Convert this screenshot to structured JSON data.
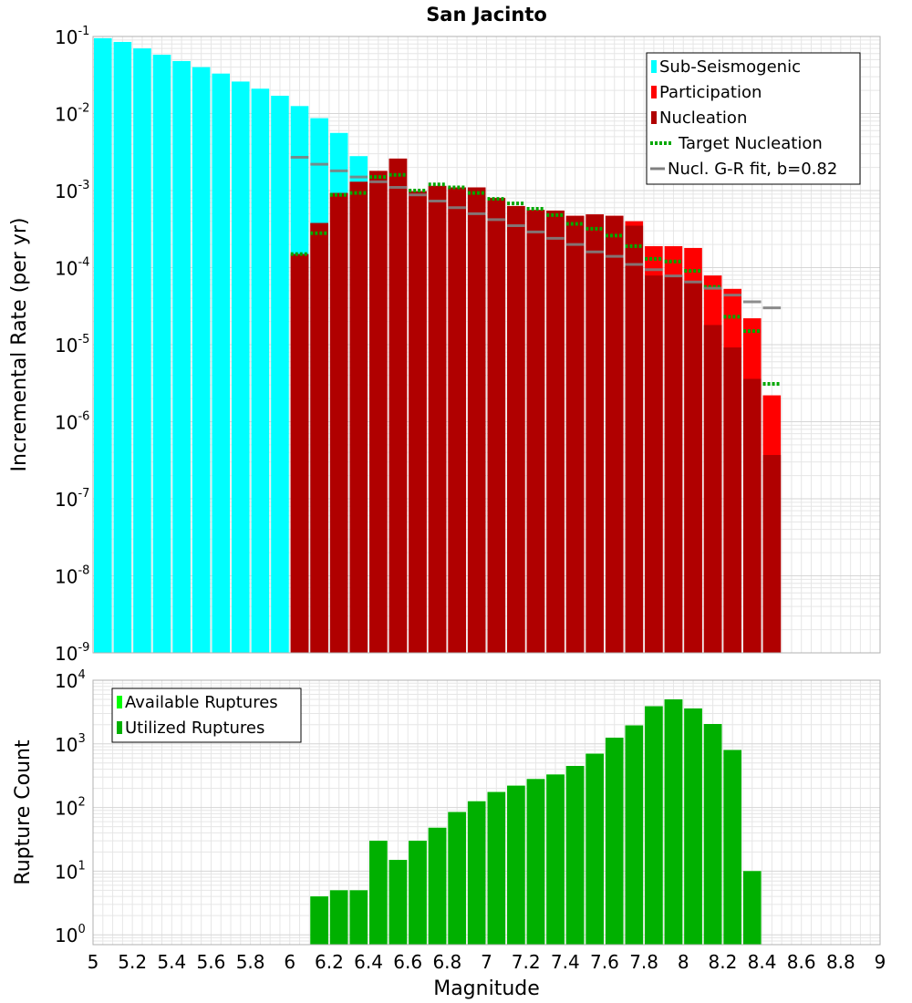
{
  "colors": {
    "sub_seismogenic": "#00ffff",
    "participation": "#ff0000",
    "nucleation": "#b00000",
    "target_nucleation": "#00a800",
    "gr_fit": "#808080",
    "gr_fit_on_bar": "#202020",
    "available": "#00ff00",
    "utilized": "#00b000",
    "grid": "#e6e6e6",
    "frame": "#b0b0b0"
  },
  "chart_data": [
    {
      "type": "bar",
      "title": "San Jacinto",
      "xlabel": "Magnitude",
      "ylabel": "Incremental Rate (per yr)",
      "yscale": "log",
      "xlim": [
        5,
        9
      ],
      "ylim": [
        1e-09,
        0.1
      ],
      "grid": true,
      "legend_position": "top-right",
      "y_ticks": [
        {
          "base": "10",
          "exp": "-9"
        },
        {
          "base": "10",
          "exp": "-8"
        },
        {
          "base": "10",
          "exp": "-7"
        },
        {
          "base": "10",
          "exp": "-6"
        },
        {
          "base": "10",
          "exp": "-5"
        },
        {
          "base": "10",
          "exp": "-4"
        },
        {
          "base": "10",
          "exp": "-3"
        },
        {
          "base": "10",
          "exp": "-2"
        },
        {
          "base": "10",
          "exp": "-1"
        }
      ],
      "series": [
        {
          "name": "Sub-Seismogenic",
          "style": "bar",
          "points": [
            [
              5.05,
              0.095
            ],
            [
              5.15,
              0.085
            ],
            [
              5.25,
              0.07
            ],
            [
              5.35,
              0.058
            ],
            [
              5.45,
              0.048
            ],
            [
              5.55,
              0.04
            ],
            [
              5.65,
              0.033
            ],
            [
              5.75,
              0.026
            ],
            [
              5.85,
              0.021
            ],
            [
              5.95,
              0.017
            ],
            [
              6.05,
              0.0125
            ],
            [
              6.15,
              0.0087
            ],
            [
              6.25,
              0.0056
            ],
            [
              6.35,
              0.0028
            ]
          ]
        },
        {
          "name": "Participation",
          "style": "bar",
          "points": [
            [
              6.05,
              0.00015
            ],
            [
              6.15,
              0.00038
            ],
            [
              6.25,
              0.00093
            ],
            [
              6.35,
              0.0013
            ],
            [
              6.45,
              0.0018
            ],
            [
              6.55,
              0.0026
            ],
            [
              6.65,
              0.00098
            ],
            [
              6.75,
              0.00115
            ],
            [
              6.85,
              0.0011
            ],
            [
              6.95,
              0.0011
            ],
            [
              7.05,
              0.0008
            ],
            [
              7.15,
              0.00063
            ],
            [
              7.25,
              0.00056
            ],
            [
              7.35,
              0.00055
            ],
            [
              7.45,
              0.00047
            ],
            [
              7.55,
              0.00049
            ],
            [
              7.65,
              0.00047
            ],
            [
              7.75,
              0.0004
            ],
            [
              7.85,
              0.00019
            ],
            [
              7.95,
              0.00019
            ],
            [
              8.05,
              0.00018
            ],
            [
              8.15,
              7.9e-05
            ],
            [
              8.25,
              5.3e-05
            ],
            [
              8.35,
              2.2e-05
            ],
            [
              8.45,
              2.2e-06
            ]
          ]
        },
        {
          "name": "Nucleation",
          "style": "bar",
          "points": [
            [
              6.05,
              0.00015
            ],
            [
              6.15,
              0.00038
            ],
            [
              6.25,
              0.00093
            ],
            [
              6.35,
              0.0013
            ],
            [
              6.45,
              0.0018
            ],
            [
              6.55,
              0.0026
            ],
            [
              6.65,
              0.00098
            ],
            [
              6.75,
              0.00115
            ],
            [
              6.85,
              0.0011
            ],
            [
              6.95,
              0.0011
            ],
            [
              7.05,
              0.0008
            ],
            [
              7.15,
              0.00063
            ],
            [
              7.25,
              0.00056
            ],
            [
              7.35,
              0.00055
            ],
            [
              7.45,
              0.00047
            ],
            [
              7.55,
              0.00049
            ],
            [
              7.65,
              0.00047
            ],
            [
              7.75,
              0.00035
            ],
            [
              7.85,
              7.9e-05
            ],
            [
              7.95,
              7.9e-05
            ],
            [
              8.05,
              6.6e-05
            ],
            [
              8.15,
              1.8e-05
            ],
            [
              8.25,
              9.2e-06
            ],
            [
              8.35,
              3.6e-06
            ],
            [
              8.45,
              3.7e-07
            ]
          ]
        },
        {
          "name": "Target Nucleation",
          "style": "dotted-segment",
          "points": [
            [
              6.05,
              0.00015
            ],
            [
              6.15,
              0.00028
            ],
            [
              6.25,
              0.00088
            ],
            [
              6.35,
              0.00093
            ],
            [
              6.45,
              0.0015
            ],
            [
              6.55,
              0.0016
            ],
            [
              6.65,
              0.001
            ],
            [
              6.75,
              0.0012
            ],
            [
              6.85,
              0.0011
            ],
            [
              6.95,
              0.00093
            ],
            [
              7.05,
              0.00078
            ],
            [
              7.15,
              0.00068
            ],
            [
              7.25,
              0.00058
            ],
            [
              7.35,
              0.00048
            ],
            [
              7.45,
              0.00037
            ],
            [
              7.55,
              0.00032
            ],
            [
              7.65,
              0.00026
            ],
            [
              7.75,
              0.00019
            ],
            [
              7.85,
              0.00013
            ],
            [
              7.95,
              0.00012
            ],
            [
              8.05,
              9.1e-05
            ],
            [
              8.15,
              5.6e-05
            ],
            [
              8.25,
              2.3e-05
            ],
            [
              8.35,
              1.5e-05
            ],
            [
              8.45,
              3.1e-06
            ]
          ]
        },
        {
          "name": "Nucl. G-R fit, b=0.82",
          "style": "segment",
          "points": [
            [
              6.05,
              0.0027
            ],
            [
              6.15,
              0.0022
            ],
            [
              6.25,
              0.0018
            ],
            [
              6.35,
              0.0015
            ],
            [
              6.45,
              0.0013
            ],
            [
              6.55,
              0.0011
            ],
            [
              6.65,
              0.00088
            ],
            [
              6.75,
              0.00073
            ],
            [
              6.85,
              0.0006
            ],
            [
              6.95,
              0.0005
            ],
            [
              7.05,
              0.00042
            ],
            [
              7.15,
              0.00035
            ],
            [
              7.25,
              0.00029
            ],
            [
              7.35,
              0.00024
            ],
            [
              7.45,
              0.0002
            ],
            [
              7.55,
              0.00016
            ],
            [
              7.65,
              0.00014
            ],
            [
              7.75,
              0.00011
            ],
            [
              7.85,
              9.4e-05
            ],
            [
              7.95,
              7.8e-05
            ],
            [
              8.05,
              6.5e-05
            ],
            [
              8.15,
              5.4e-05
            ],
            [
              8.25,
              4.4e-05
            ],
            [
              8.35,
              3.6e-05
            ],
            [
              8.45,
              3e-05
            ]
          ]
        }
      ]
    },
    {
      "type": "bar",
      "title": "",
      "xlabel": "Magnitude",
      "ylabel": "Rupture Count",
      "yscale": "log",
      "xlim": [
        5,
        9
      ],
      "ylim": [
        0.7,
        10000
      ],
      "grid": true,
      "legend_position": "top-left",
      "y_ticks": [
        {
          "base": "10",
          "exp": "0"
        },
        {
          "base": "10",
          "exp": "1"
        },
        {
          "base": "10",
          "exp": "2"
        },
        {
          "base": "10",
          "exp": "3"
        },
        {
          "base": "10",
          "exp": "4"
        }
      ],
      "x_ticks": [
        "5",
        "5.2",
        "5.4",
        "5.6",
        "5.8",
        "6",
        "6.2",
        "6.4",
        "6.6",
        "6.8",
        "7",
        "7.2",
        "7.4",
        "7.6",
        "7.8",
        "8",
        "8.2",
        "8.4",
        "8.6",
        "8.8",
        "9"
      ],
      "series": [
        {
          "name": "Available Ruptures",
          "style": "bar",
          "points": [
            [
              6.15,
              4
            ],
            [
              6.25,
              5
            ],
            [
              6.35,
              5
            ],
            [
              6.45,
              30
            ],
            [
              6.55,
              15
            ],
            [
              6.65,
              30
            ],
            [
              6.75,
              48
            ],
            [
              6.85,
              85
            ],
            [
              6.95,
              125
            ],
            [
              7.05,
              175
            ],
            [
              7.15,
              220
            ],
            [
              7.25,
              280
            ],
            [
              7.35,
              330
            ],
            [
              7.45,
              450
            ],
            [
              7.55,
              700
            ],
            [
              7.65,
              1250
            ],
            [
              7.75,
              1950
            ],
            [
              7.85,
              3900
            ],
            [
              7.95,
              5000
            ],
            [
              8.05,
              3600
            ],
            [
              8.15,
              2050
            ],
            [
              8.25,
              800
            ],
            [
              8.35,
              10
            ]
          ]
        },
        {
          "name": "Utilized Ruptures",
          "style": "bar",
          "points": [
            [
              6.15,
              4
            ],
            [
              6.25,
              5
            ],
            [
              6.35,
              5
            ],
            [
              6.45,
              30
            ],
            [
              6.55,
              15
            ],
            [
              6.65,
              30
            ],
            [
              6.75,
              48
            ],
            [
              6.85,
              85
            ],
            [
              6.95,
              125
            ],
            [
              7.05,
              175
            ],
            [
              7.15,
              220
            ],
            [
              7.25,
              280
            ],
            [
              7.35,
              330
            ],
            [
              7.45,
              450
            ],
            [
              7.55,
              700
            ],
            [
              7.65,
              1250
            ],
            [
              7.75,
              1950
            ],
            [
              7.85,
              3900
            ],
            [
              7.95,
              5000
            ],
            [
              8.05,
              3600
            ],
            [
              8.15,
              2050
            ],
            [
              8.25,
              800
            ],
            [
              8.35,
              10
            ]
          ]
        }
      ]
    }
  ]
}
